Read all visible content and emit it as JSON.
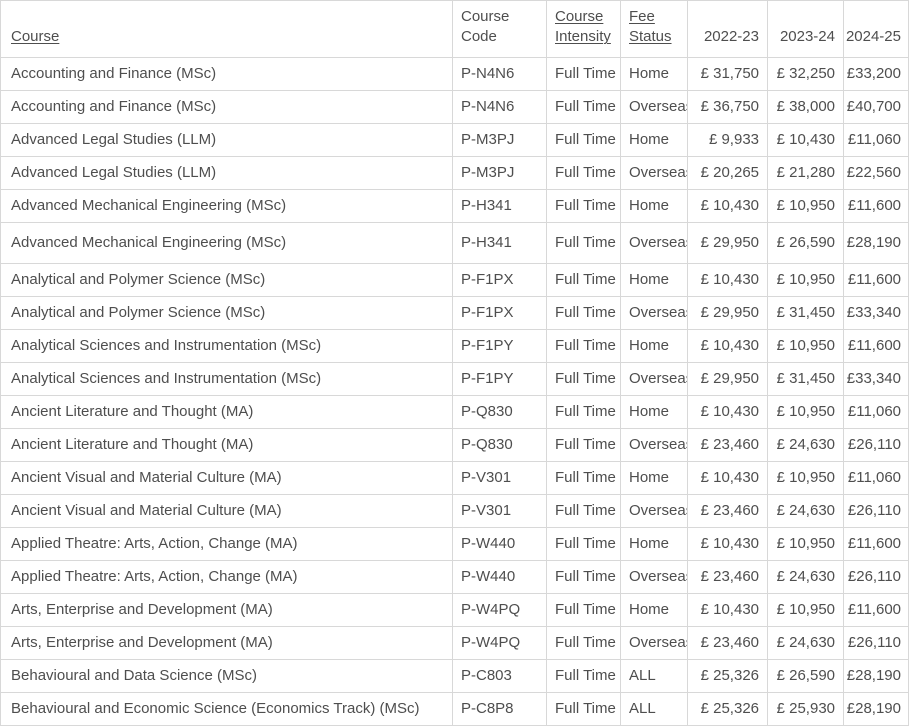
{
  "colors": {
    "text": "#4e4e4e",
    "border": "#d8d8d8",
    "background": "#ffffff"
  },
  "table": {
    "headers": [
      {
        "label": "Course",
        "underlined": true
      },
      {
        "label": "Course Code",
        "underlined": false
      },
      {
        "label": "Course Intensity",
        "underlined": true
      },
      {
        "label": "Fee Status",
        "underlined": true
      },
      {
        "label": "2022-23",
        "underlined": false
      },
      {
        "label": "2023-24",
        "underlined": false
      },
      {
        "label": "2024-25",
        "underlined": false
      }
    ],
    "rows": [
      [
        "Accounting and Finance (MSc)",
        "P-N4N6",
        "Full Time",
        "Home",
        "£ 31,750",
        "£ 32,250",
        "£33,200"
      ],
      [
        "Accounting and Finance (MSc)",
        "P-N4N6",
        "Full Time",
        "Overseas",
        "£ 36,750",
        "£ 38,000",
        "£40,700"
      ],
      [
        "Advanced Legal Studies (LLM)",
        "P-M3PJ",
        "Full Time",
        "Home",
        "£ 9,933",
        "£ 10,430",
        "£11,060"
      ],
      [
        "Advanced Legal Studies (LLM)",
        "P-M3PJ",
        "Full Time",
        "Overseas",
        "£ 20,265",
        "£ 21,280",
        "£22,560"
      ],
      [
        "Advanced Mechanical Engineering (MSc)",
        "P-H341",
        "Full Time",
        "Home",
        "£ 10,430",
        "£ 10,950",
        "£11,600"
      ],
      [
        "Advanced Mechanical Engineering (MSc)",
        "P-H341",
        "Full Time",
        "Overseas",
        "£ 29,950",
        "£ 26,590",
        "£28,190"
      ],
      [
        "Analytical and Polymer Science (MSc)",
        "P-F1PX",
        "Full Time",
        "Home",
        "£ 10,430",
        "£ 10,950",
        "£11,600"
      ],
      [
        "Analytical and Polymer Science (MSc)",
        "P-F1PX",
        "Full Time",
        "Overseas",
        "£ 29,950",
        "£ 31,450",
        "£33,340"
      ],
      [
        "Analytical Sciences and Instrumentation (MSc)",
        "P-F1PY",
        "Full Time",
        "Home",
        "£ 10,430",
        "£ 10,950",
        "£11,600"
      ],
      [
        "Analytical Sciences and Instrumentation (MSc)",
        "P-F1PY",
        "Full Time",
        "Overseas",
        "£ 29,950",
        "£ 31,450",
        "£33,340"
      ],
      [
        "Ancient Literature and Thought (MA)",
        "P-Q830",
        "Full Time",
        "Home",
        "£ 10,430",
        "£ 10,950",
        "£11,060"
      ],
      [
        "Ancient Literature and Thought (MA)",
        "P-Q830",
        "Full Time",
        "Overseas",
        "£ 23,460",
        "£ 24,630",
        "£26,110"
      ],
      [
        "Ancient Visual and Material Culture (MA)",
        "P-V301",
        "Full Time",
        "Home",
        "£ 10,430",
        "£ 10,950",
        "£11,060"
      ],
      [
        "Ancient Visual and Material Culture (MA)",
        "P-V301",
        "Full Time",
        "Overseas",
        "£ 23,460",
        "£ 24,630",
        "£26,110"
      ],
      [
        "Applied Theatre: Arts, Action, Change (MA)",
        "P-W440",
        "Full Time",
        "Home",
        "£ 10,430",
        "£ 10,950",
        "£11,600"
      ],
      [
        "Applied Theatre: Arts, Action, Change (MA)",
        "P-W440",
        "Full Time",
        "Overseas",
        "£ 23,460",
        "£ 24,630",
        "£26,110"
      ],
      [
        "Arts, Enterprise and Development (MA)",
        "P-W4PQ",
        "Full Time",
        "Home",
        "£ 10,430",
        "£ 10,950",
        "£11,600"
      ],
      [
        "Arts, Enterprise and Development (MA)",
        "P-W4PQ",
        "Full Time",
        "Overseas",
        "£ 23,460",
        "£ 24,630",
        "£26,110"
      ],
      [
        "Behavioural and Data Science (MSc)",
        "P-C803",
        "Full Time",
        "ALL",
        "£ 25,326",
        "£ 26,590",
        "£28,190"
      ],
      [
        "Behavioural and Economic Science (Economics Track) (MSc)",
        "P-C8P8",
        "Full Time",
        "ALL",
        "£ 25,326",
        "£ 25,930",
        "£28,190"
      ]
    ]
  }
}
